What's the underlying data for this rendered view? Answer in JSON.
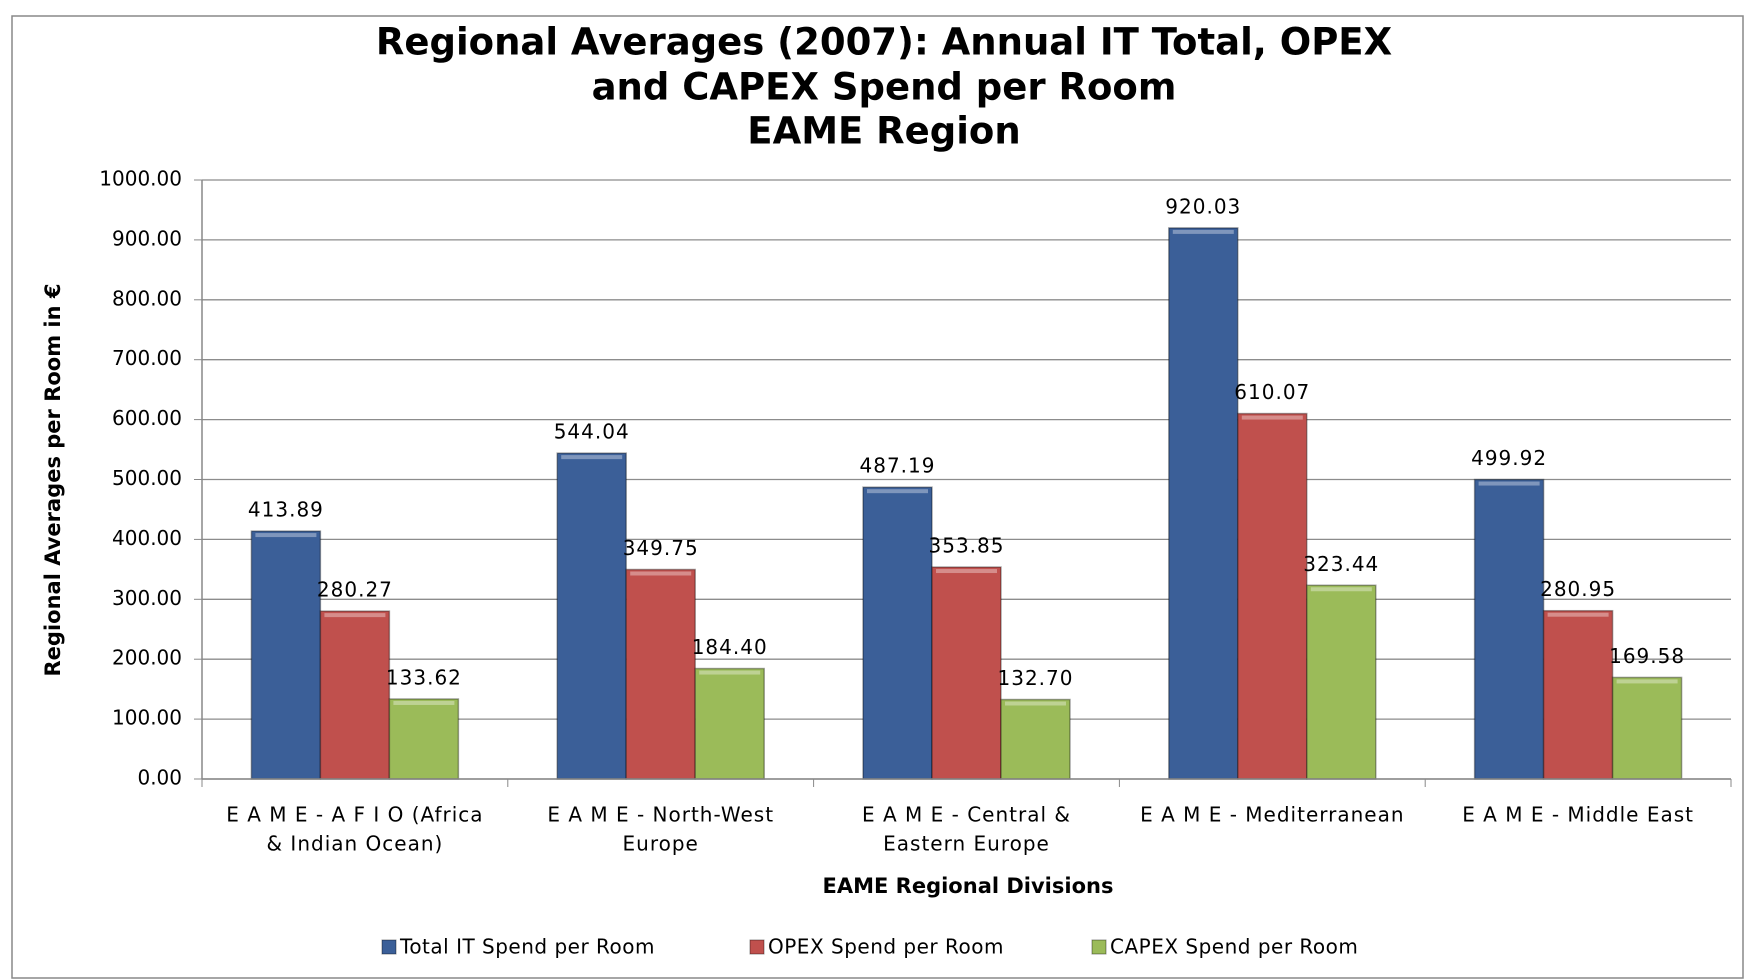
{
  "chart_data": {
    "type": "bar",
    "title": [
      "Regional Averages (2007): Annual IT Total, OPEX",
      "and CAPEX Spend per Room",
      "EAME Region"
    ],
    "x_label": "EAME Regional Divisions",
    "y_label": "Regional Averages per Room in €",
    "categories": [
      [
        "E A M E - A F I O (Africa",
        "& Indian Ocean)"
      ],
      [
        "E A M E - North-West",
        "Europe"
      ],
      [
        "E A M E - Central &",
        "Eastern Europe"
      ],
      [
        "E A M E - Mediterranean"
      ],
      [
        "E A M E - Middle East"
      ]
    ],
    "series": [
      {
        "name": "Total IT Spend per Room",
        "color": "#3b5f98",
        "values": [
          413.89,
          544.04,
          487.19,
          920.03,
          499.92
        ],
        "value_labels": [
          "413.89",
          "544.04",
          "487.19",
          "920.03",
          "499.92"
        ]
      },
      {
        "name": "OPEX Spend per Room",
        "color": "#c0504d",
        "values": [
          280.27,
          349.75,
          353.85,
          610.07,
          280.95
        ],
        "value_labels": [
          "280.27",
          "349.75",
          "353.85",
          "610.07",
          "280.95"
        ]
      },
      {
        "name": "CAPEX Spend per Room",
        "color": "#9bbb59",
        "values": [
          133.62,
          184.4,
          132.7,
          323.44,
          169.58
        ],
        "value_labels": [
          "133.62",
          "184.40",
          "132.70",
          "323.44",
          "169.58"
        ]
      }
    ],
    "ylim": [
      0,
      1000
    ],
    "yticks": [
      {
        "value": 0,
        "label": "0.00"
      },
      {
        "value": 100,
        "label": "100.00"
      },
      {
        "value": 200,
        "label": "200.00"
      },
      {
        "value": 300,
        "label": "300.00"
      },
      {
        "value": 400,
        "label": "400.00"
      },
      {
        "value": 500,
        "label": "500.00"
      },
      {
        "value": 600,
        "label": "600.00"
      },
      {
        "value": 700,
        "label": "700.00"
      },
      {
        "value": 800,
        "label": "800.00"
      },
      {
        "value": 900,
        "label": "900.00"
      },
      {
        "value": 1000,
        "label": "1000.00"
      }
    ],
    "grid": true,
    "legend": "bottom"
  }
}
